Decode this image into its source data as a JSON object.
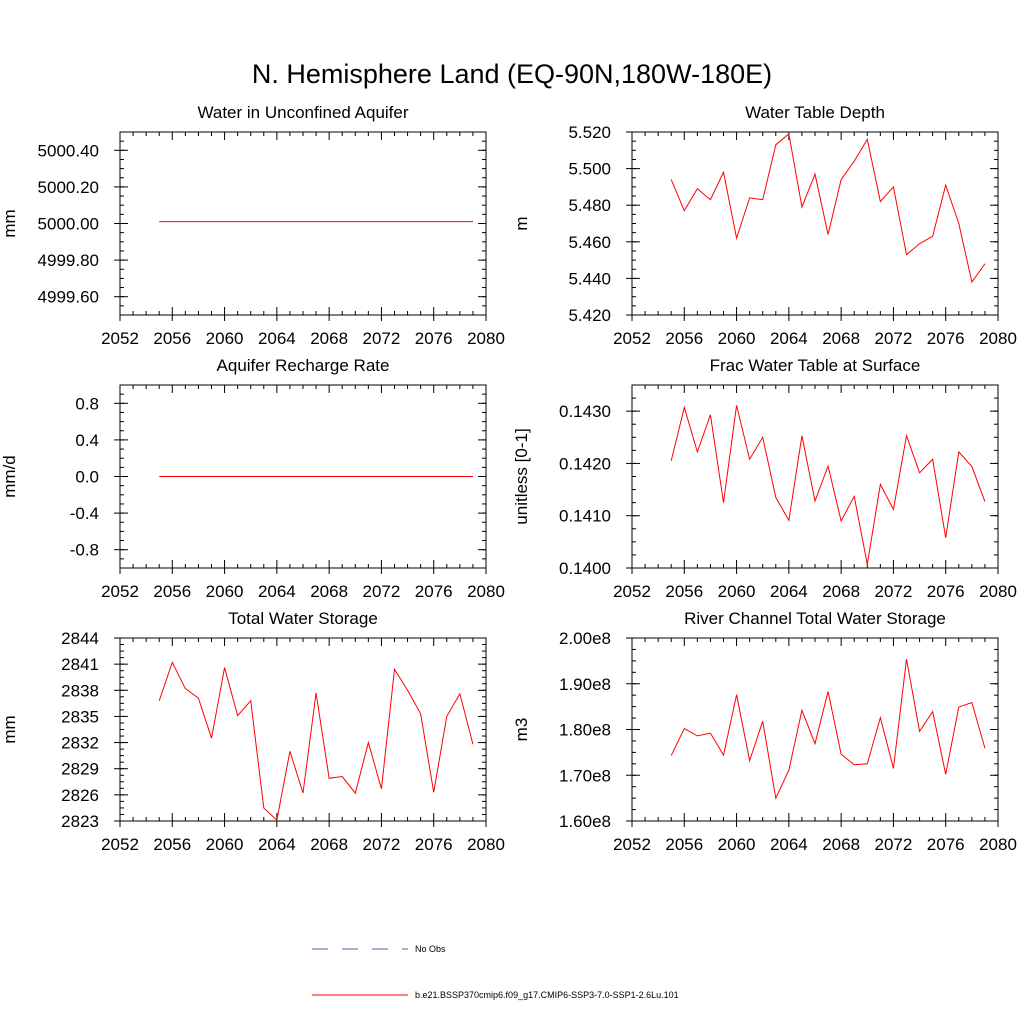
{
  "title": "N. Hemisphere Land (EQ-90N,180W-180E)",
  "legend": [
    {
      "label": "No Obs",
      "color": "#4c5fb3",
      "dash": true
    },
    {
      "label": "b.e21.BSSP370cmip6.f09_g17.CMIP6-SSP3-7.0-SSP1-2.6Lu.101",
      "color": "#ff0000",
      "dash": false
    }
  ],
  "chart_data": [
    {
      "type": "line",
      "title": "Water in Unconfined Aquifer",
      "ylabel": "mm",
      "xlim": [
        2052,
        2080
      ],
      "ylim": [
        4999.5,
        5000.5
      ],
      "xticks": [
        "2052",
        "2056",
        "2060",
        "2064",
        "2068",
        "2072",
        "2076",
        "2080"
      ],
      "yticks": [
        [
          4999.6,
          "4999.60"
        ],
        [
          4999.8,
          "4999.80"
        ],
        [
          5000.0,
          "5000.00"
        ],
        [
          5000.2,
          "5000.20"
        ],
        [
          5000.4,
          "5000.40"
        ]
      ],
      "yminor": 0.05,
      "series": [
        {
          "color": "#ff0000",
          "x": [
            2055,
            2056,
            2057,
            2058,
            2059,
            2060,
            2061,
            2062,
            2063,
            2064,
            2065,
            2066,
            2067,
            2068,
            2069,
            2070,
            2071,
            2072,
            2073,
            2074,
            2075,
            2076,
            2077,
            2078,
            2079
          ],
          "y": [
            5000.01,
            5000.01,
            5000.01,
            5000.01,
            5000.01,
            5000.01,
            5000.01,
            5000.01,
            5000.01,
            5000.01,
            5000.01,
            5000.01,
            5000.01,
            5000.01,
            5000.01,
            5000.01,
            5000.01,
            5000.01,
            5000.01,
            5000.01,
            5000.01,
            5000.01,
            5000.01,
            5000.01,
            5000.01
          ]
        }
      ]
    },
    {
      "type": "line",
      "title": "Water Table Depth",
      "ylabel": "m",
      "xlim": [
        2052,
        2080
      ],
      "ylim": [
        5.42,
        5.52
      ],
      "xticks": [
        "2052",
        "2056",
        "2060",
        "2064",
        "2068",
        "2072",
        "2076",
        "2080"
      ],
      "yticks": [
        [
          5.42,
          "5.420"
        ],
        [
          5.44,
          "5.440"
        ],
        [
          5.46,
          "5.460"
        ],
        [
          5.48,
          "5.480"
        ],
        [
          5.5,
          "5.500"
        ],
        [
          5.52,
          "5.520"
        ]
      ],
      "yminor": 0.005,
      "series": [
        {
          "color": "#ff0000",
          "x": [
            2055,
            2056,
            2057,
            2058,
            2059,
            2060,
            2061,
            2062,
            2063,
            2064,
            2065,
            2066,
            2067,
            2068,
            2069,
            2070,
            2071,
            2072,
            2073,
            2074,
            2075,
            2076,
            2077,
            2078,
            2079
          ],
          "y": [
            5.494,
            5.477,
            5.489,
            5.483,
            5.498,
            5.462,
            5.484,
            5.483,
            5.513,
            5.519,
            5.479,
            5.497,
            5.464,
            5.494,
            5.504,
            5.516,
            5.482,
            5.49,
            5.453,
            5.459,
            5.463,
            5.491,
            5.47,
            5.438,
            5.448
          ]
        }
      ]
    },
    {
      "type": "line",
      "title": "Aquifer Recharge Rate",
      "ylabel": "mm/d",
      "xlim": [
        2052,
        2080
      ],
      "ylim": [
        -1.0,
        1.0
      ],
      "xticks": [
        "2052",
        "2056",
        "2060",
        "2064",
        "2068",
        "2072",
        "2076",
        "2080"
      ],
      "yticks": [
        [
          -0.8,
          "-0.8"
        ],
        [
          -0.4,
          "-0.4"
        ],
        [
          0.0,
          "0.0"
        ],
        [
          0.4,
          "0.4"
        ],
        [
          0.8,
          "0.8"
        ]
      ],
      "yminor": 0.1,
      "series": [
        {
          "color": "#ff0000",
          "x": [
            2055,
            2056,
            2057,
            2058,
            2059,
            2060,
            2061,
            2062,
            2063,
            2064,
            2065,
            2066,
            2067,
            2068,
            2069,
            2070,
            2071,
            2072,
            2073,
            2074,
            2075,
            2076,
            2077,
            2078,
            2079
          ],
          "y": [
            0,
            0,
            0,
            0,
            0,
            0,
            0,
            0,
            0,
            0,
            0,
            0,
            0,
            0,
            0,
            0,
            0,
            0,
            0,
            0,
            0,
            0,
            0,
            0,
            0
          ]
        }
      ]
    },
    {
      "type": "line",
      "title": "Frac Water Table at Surface",
      "ylabel": "unitless [0-1]",
      "xlim": [
        2052,
        2080
      ],
      "ylim": [
        0.14,
        0.1435
      ],
      "xticks": [
        "2052",
        "2056",
        "2060",
        "2064",
        "2068",
        "2072",
        "2076",
        "2080"
      ],
      "yticks": [
        [
          0.14,
          "0.1400"
        ],
        [
          0.141,
          "0.1410"
        ],
        [
          0.142,
          "0.1420"
        ],
        [
          0.143,
          "0.1430"
        ]
      ],
      "yminor": 0.00025,
      "series": [
        {
          "color": "#ff0000",
          "x": [
            2055,
            2056,
            2057,
            2058,
            2059,
            2060,
            2061,
            2062,
            2063,
            2064,
            2065,
            2066,
            2067,
            2068,
            2069,
            2070,
            2071,
            2072,
            2073,
            2074,
            2075,
            2076,
            2077,
            2078,
            2079
          ],
          "y": [
            0.14205,
            0.14307,
            0.14222,
            0.14293,
            0.14125,
            0.14311,
            0.14208,
            0.1425,
            0.14135,
            0.14091,
            0.14253,
            0.14128,
            0.14195,
            0.1409,
            0.14137,
            0.14007,
            0.1416,
            0.14112,
            0.14253,
            0.14182,
            0.14208,
            0.14058,
            0.14222,
            0.14194,
            0.14127
          ]
        }
      ]
    },
    {
      "type": "line",
      "title": "Total Water Storage",
      "ylabel": "mm",
      "xlim": [
        2052,
        2080
      ],
      "ylim": [
        2823,
        2844
      ],
      "xticks": [
        "2052",
        "2056",
        "2060",
        "2064",
        "2068",
        "2072",
        "2076",
        "2080"
      ],
      "yticks": [
        [
          2823,
          "2823"
        ],
        [
          2826,
          "2826"
        ],
        [
          2829,
          "2829"
        ],
        [
          2832,
          "2832"
        ],
        [
          2835,
          "2835"
        ],
        [
          2838,
          "2838"
        ],
        [
          2841,
          "2841"
        ],
        [
          2844,
          "2844"
        ]
      ],
      "yminor": 0.75,
      "series": [
        {
          "color": "#ff0000",
          "x": [
            2055,
            2056,
            2057,
            2058,
            2059,
            2060,
            2061,
            2062,
            2063,
            2064,
            2065,
            2066,
            2067,
            2068,
            2069,
            2070,
            2071,
            2072,
            2073,
            2074,
            2075,
            2076,
            2077,
            2078,
            2079
          ],
          "y": [
            2836.8,
            2841.2,
            2838.2,
            2837.1,
            2832.5,
            2840.6,
            2835.1,
            2836.8,
            2824.5,
            2823.1,
            2831.0,
            2826.2,
            2837.7,
            2827.9,
            2828.1,
            2826.2,
            2832.0,
            2826.7,
            2840.4,
            2838.0,
            2835.3,
            2826.3,
            2835.0,
            2837.6,
            2831.8
          ]
        }
      ]
    },
    {
      "type": "line",
      "title": "River Channel Total Water Storage",
      "ylabel": "m3",
      "xlim": [
        2052,
        2080
      ],
      "ylim": [
        160000000,
        200000000
      ],
      "xticks": [
        "2052",
        "2056",
        "2060",
        "2064",
        "2068",
        "2072",
        "2076",
        "2080"
      ],
      "yticks": [
        [
          160000000,
          "1.60e8"
        ],
        [
          170000000,
          "1.70e8"
        ],
        [
          180000000,
          "1.80e8"
        ],
        [
          190000000,
          "1.90e8"
        ],
        [
          200000000,
          "2.00e8"
        ]
      ],
      "yminor": 2500000,
      "series": [
        {
          "color": "#ff0000",
          "x": [
            2055,
            2056,
            2057,
            2058,
            2059,
            2060,
            2061,
            2062,
            2063,
            2064,
            2065,
            2066,
            2067,
            2068,
            2069,
            2070,
            2071,
            2072,
            2073,
            2074,
            2075,
            2076,
            2077,
            2078,
            2079
          ],
          "y": [
            174300000,
            180200000,
            178600000,
            179200000,
            174400000,
            187600000,
            173200000,
            181800000,
            165000000,
            171100000,
            184200000,
            176900000,
            188300000,
            174600000,
            172300000,
            172500000,
            182600000,
            171500000,
            195400000,
            179600000,
            183900000,
            170200000,
            184900000,
            185900000,
            175900000
          ]
        }
      ]
    }
  ]
}
